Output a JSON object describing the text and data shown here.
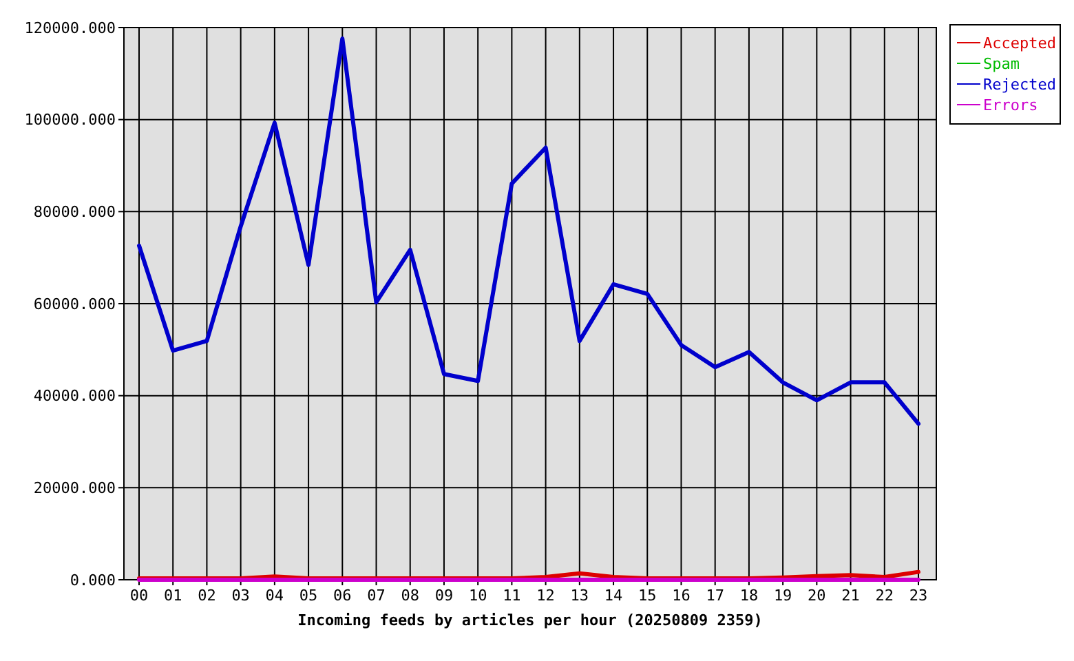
{
  "chart_data": {
    "type": "line",
    "xlabel": "Incoming feeds by articles per hour (20250809 2359)",
    "categories": [
      "00",
      "01",
      "02",
      "03",
      "04",
      "05",
      "06",
      "07",
      "08",
      "09",
      "10",
      "11",
      "12",
      "13",
      "14",
      "15",
      "16",
      "17",
      "18",
      "19",
      "20",
      "21",
      "22",
      "23"
    ],
    "series": [
      {
        "name": "Accepted",
        "color": "#dd0000",
        "values": [
          300,
          300,
          300,
          300,
          700,
          300,
          300,
          300,
          300,
          300,
          300,
          300,
          600,
          1400,
          600,
          300,
          300,
          300,
          300,
          500,
          800,
          1000,
          600,
          1700
        ]
      },
      {
        "name": "Spam",
        "color": "#00bb00",
        "values": [
          null,
          null,
          null,
          null,
          null,
          null,
          null,
          null,
          null,
          null,
          null,
          null,
          null,
          null,
          null,
          null,
          null,
          null,
          null,
          null,
          null,
          null,
          null,
          null
        ]
      },
      {
        "name": "Rejected",
        "color": "#0000cc",
        "values": [
          72600,
          49800,
          51900,
          76800,
          99300,
          68400,
          117600,
          60300,
          71700,
          44700,
          43200,
          86100,
          93900,
          51900,
          64200,
          62100,
          51000,
          46200,
          49500,
          42900,
          39000,
          42900,
          42900,
          33900
        ]
      },
      {
        "name": "Errors",
        "color": "#cc00cc",
        "values": [
          0,
          0,
          0,
          0,
          0,
          0,
          0,
          0,
          0,
          0,
          0,
          0,
          0,
          0,
          0,
          0,
          0,
          0,
          0,
          0,
          0,
          0,
          0,
          0
        ]
      }
    ],
    "ylim": [
      0,
      120000
    ],
    "yticks": [
      {
        "value": 0,
        "label": "0.000"
      },
      {
        "value": 20000,
        "label": "20000.000"
      },
      {
        "value": 40000,
        "label": "40000.000"
      },
      {
        "value": 60000,
        "label": "60000.000"
      },
      {
        "value": 80000,
        "label": "80000.000"
      },
      {
        "value": 100000,
        "label": "100000.000"
      },
      {
        "value": 120000,
        "label": "120000.000"
      }
    ],
    "grid": true,
    "legend": "top right"
  }
}
